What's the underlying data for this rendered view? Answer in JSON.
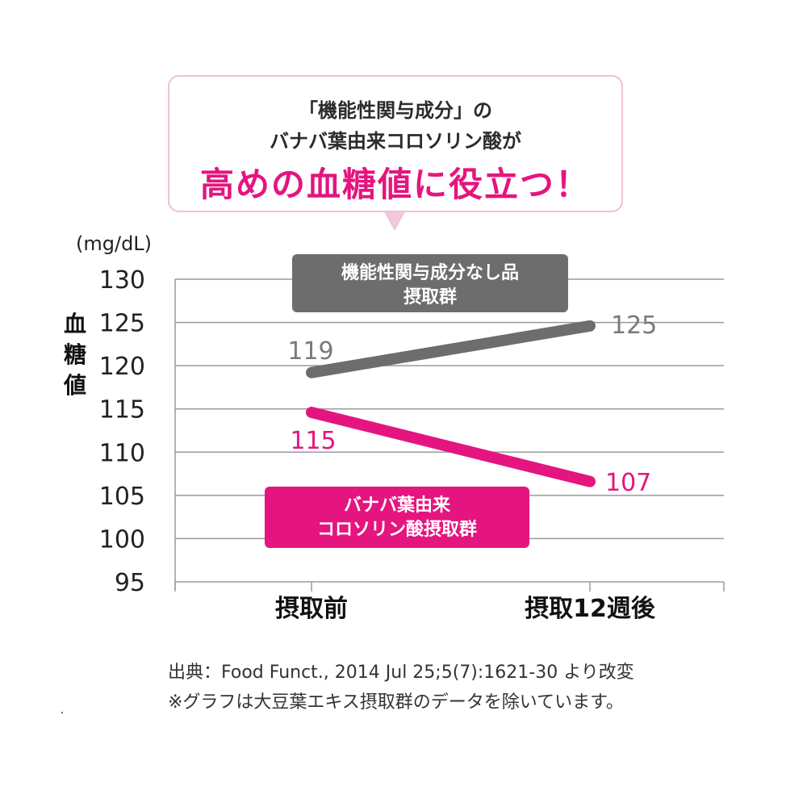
{
  "callout": {
    "line1": "「機能性関与成分」の",
    "line2": "バナバ葉由来コロソリン酸が",
    "line3": "高めの血糖値に役立つ！"
  },
  "chart_data": {
    "type": "line",
    "categories": [
      "摂取前",
      "摂取12週後"
    ],
    "unit_label": "(mg/dL)",
    "ylabel": "血糖値",
    "ylim": [
      95,
      130
    ],
    "yticks": [
      95,
      100,
      105,
      110,
      115,
      120,
      125,
      130
    ],
    "grid": true,
    "series": [
      {
        "name": "機能性関与成分なし品摂取群",
        "label_lines": [
          "機能性関与成分なし品",
          "摂取群"
        ],
        "values": [
          119,
          125
        ],
        "plot_values": [
          119.2,
          124.6
        ],
        "value_labels": [
          "119",
          "125"
        ],
        "color": "#6d6d6d",
        "label_color": "#7a7a7a"
      },
      {
        "name": "バナバ葉由来コロソリン酸摂取群",
        "label_lines": [
          "バナバ葉由来",
          "コロソリン酸摂取群"
        ],
        "values": [
          115,
          107
        ],
        "plot_values": [
          114.6,
          106.6
        ],
        "value_labels": [
          "115",
          "107"
        ],
        "color": "#e4157e",
        "label_color": "#e4157e"
      }
    ]
  },
  "source": {
    "line1": "出典：Food Funct., 2014 Jul 25;5(7):1621-30 より改変",
    "line2": "※グラフは大豆葉エキス摂取群のデータを除いています。"
  }
}
